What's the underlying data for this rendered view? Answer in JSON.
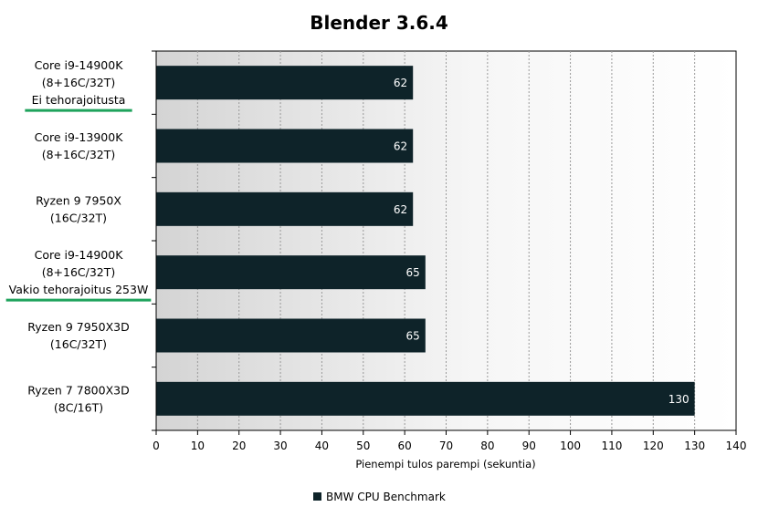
{
  "chart_data": {
    "type": "bar",
    "orientation": "horizontal",
    "title": "Blender 3.6.4",
    "xlabel": "Pienempi tulos parempi (sekuntia)",
    "ylabel": "",
    "xlim": [
      0,
      140
    ],
    "xticks": [
      0,
      10,
      20,
      30,
      40,
      50,
      60,
      70,
      80,
      90,
      100,
      110,
      120,
      130,
      140
    ],
    "grid": "vertical dashed",
    "legend_position": "bottom",
    "categories": [
      {
        "lines": [
          "Core i9-14900K",
          "(8+16C/32T)",
          "Ei tehorajoitusta"
        ],
        "underline": true
      },
      {
        "lines": [
          "Core i9-13900K",
          "(8+16C/32T)"
        ],
        "underline": false
      },
      {
        "lines": [
          "Ryzen 9 7950X",
          "(16C/32T)"
        ],
        "underline": false
      },
      {
        "lines": [
          "Core i9-14900K",
          "(8+16C/32T)",
          "Vakio tehorajoitus 253W"
        ],
        "underline": true
      },
      {
        "lines": [
          "Ryzen 9 7950X3D",
          "(16C/32T)"
        ],
        "underline": false
      },
      {
        "lines": [
          "Ryzen 7 7800X3D",
          "(8C/16T)"
        ],
        "underline": false
      }
    ],
    "series": [
      {
        "name": "BMW CPU Benchmark",
        "color": "#0e2329",
        "values": [
          62,
          62,
          62,
          65,
          65,
          130
        ]
      }
    ],
    "underline_color": "#1fa35c"
  }
}
